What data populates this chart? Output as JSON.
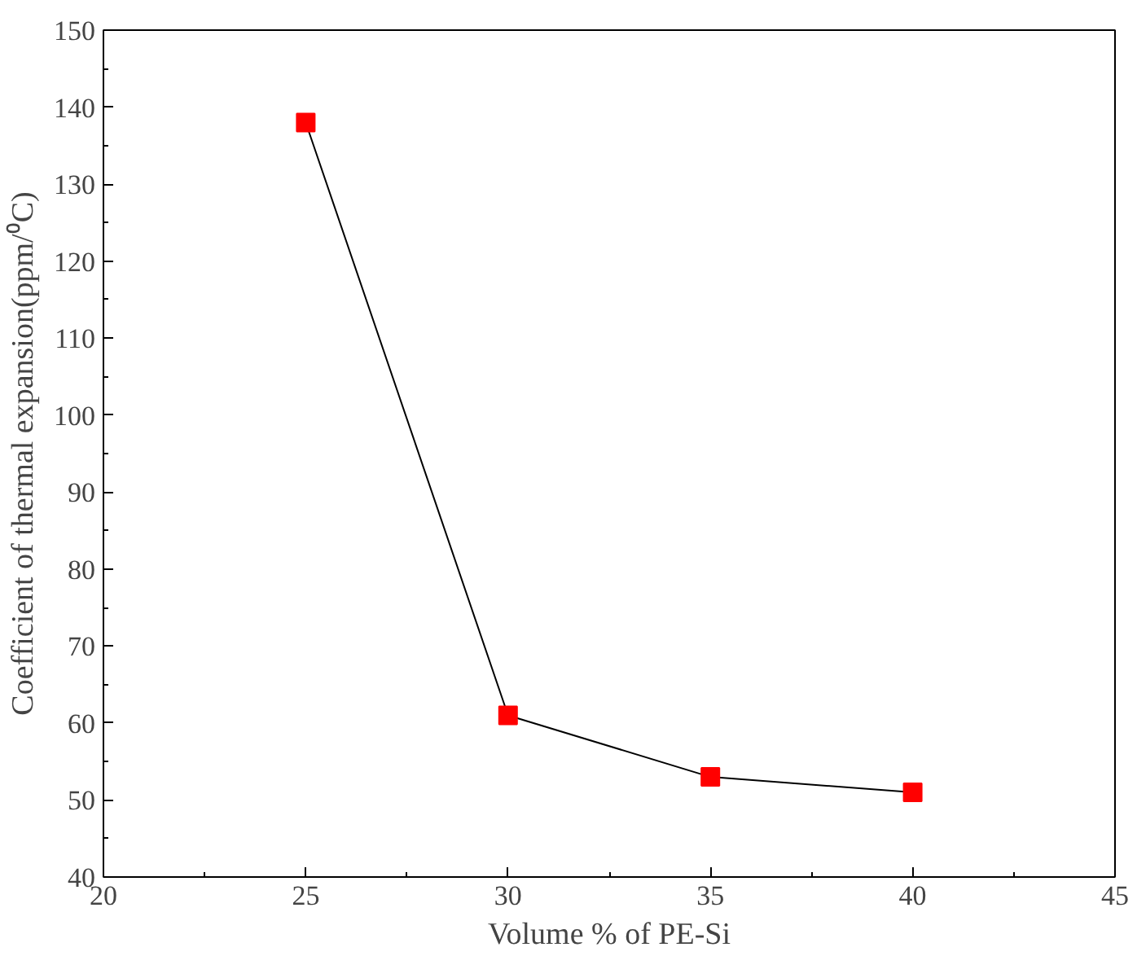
{
  "chart_data": {
    "type": "line",
    "xlabel": "Volume % of PE-Si",
    "ylabel": "Coefficient of thermal expansion(ppm/⁰C)",
    "x": [
      25,
      30,
      35,
      40
    ],
    "series": [
      {
        "color": "#ff0000",
        "values": [
          138,
          61,
          53,
          51
        ]
      }
    ],
    "xlim": [
      20,
      45
    ],
    "xticks": [
      20,
      25,
      30,
      35,
      40,
      45
    ],
    "ylim": [
      40,
      150
    ],
    "yticks": [
      40,
      50,
      60,
      70,
      80,
      90,
      100,
      110,
      120,
      130,
      140,
      150
    ],
    "marker": "square",
    "line_style": "solid",
    "grid": false
  }
}
